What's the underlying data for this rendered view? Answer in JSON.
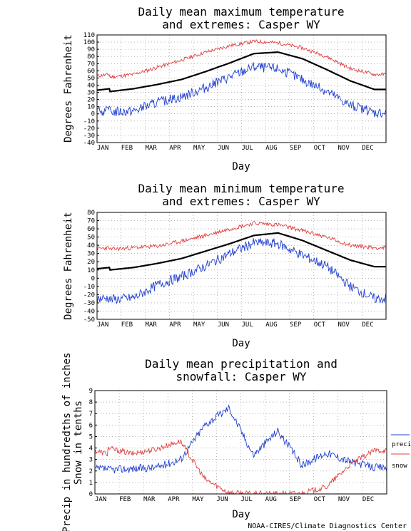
{
  "footer": {
    "credit": "NOAA-CIRES/Climate Diagnostics Center"
  },
  "colors": {
    "extreme_high": "#e04040",
    "extreme_low": "#2040d0",
    "mean": "#000000",
    "precip": "#2040d0",
    "snow": "#e04040",
    "grid": "#888888"
  },
  "chart_data": [
    {
      "type": "line",
      "title": "Daily mean maximum temperature and extremes: Casper WY",
      "title_lines": [
        "Daily mean maximum temperature",
        "and extremes: Casper WY"
      ],
      "xlabel": "Day",
      "ylabel": "Degrees Fahrenheit",
      "xticks": [
        "JAN",
        "FEB",
        "MAR",
        "APR",
        "MAY",
        "JUN",
        "JUL",
        "AUG",
        "SEP",
        "OCT",
        "NOV",
        "DEC"
      ],
      "yticks": [
        -40,
        -30,
        -20,
        -10,
        0,
        10,
        20,
        30,
        40,
        50,
        60,
        70,
        80,
        90,
        100,
        110
      ],
      "ylim": [
        -40,
        110
      ],
      "grid": true,
      "series": [
        {
          "role": "extreme_high",
          "color": "#e04040",
          "months": [
            51,
            55,
            65,
            75,
            86,
            95,
            101,
            99,
            92,
            80,
            63,
            55
          ]
        },
        {
          "role": "mean",
          "color": "#000000",
          "months": [
            31,
            35,
            41,
            48,
            59,
            71,
            84,
            86,
            77,
            62,
            46,
            34
          ]
        },
        {
          "role": "extreme_low",
          "color": "#2040d0",
          "months": [
            3,
            4,
            16,
            24,
            37,
            52,
            66,
            63,
            48,
            32,
            12,
            2
          ]
        }
      ]
    },
    {
      "type": "line",
      "title": "Daily mean minimum temperature and extremes: Casper WY",
      "title_lines": [
        "Daily mean minimum temperature",
        "and extremes: Casper WY"
      ],
      "xlabel": "Day",
      "ylabel": "Degrees Fahrenheit",
      "xticks": [
        "JAN",
        "FEB",
        "MAR",
        "APR",
        "MAY",
        "JUN",
        "JUL",
        "AUG",
        "SEP",
        "OCT",
        "NOV",
        "DEC"
      ],
      "yticks": [
        -50,
        -40,
        -30,
        -20,
        -10,
        0,
        10,
        20,
        30,
        40,
        50,
        60,
        70,
        80
      ],
      "ylim": [
        -50,
        80
      ],
      "grid": true,
      "series": [
        {
          "role": "extreme_high",
          "color": "#e04040",
          "months": [
            35,
            37,
            39,
            45,
            52,
            60,
            67,
            65,
            58,
            50,
            40,
            37
          ]
        },
        {
          "role": "mean",
          "color": "#000000",
          "months": [
            10,
            13,
            18,
            24,
            33,
            42,
            52,
            55,
            46,
            34,
            22,
            14
          ]
        },
        {
          "role": "extreme_low",
          "color": "#2040d0",
          "months": [
            -26,
            -24,
            -8,
            2,
            15,
            30,
            43,
            42,
            28,
            15,
            -10,
            -25
          ]
        }
      ]
    },
    {
      "type": "line",
      "title": "Daily mean precipitation and snowfall: Casper WY",
      "title_lines": [
        "Daily mean precipitation and",
        "snowfall: Casper WY"
      ],
      "xlabel": "Day",
      "ylabel": "Precip in hundredths of inches Snow in tenths",
      "ylabel_lines": [
        "Precip in hundredths of inches",
        "Snow in tenths"
      ],
      "xticks": [
        "JAN",
        "FEB",
        "MAR",
        "APR",
        "MAY",
        "JUN",
        "JUL",
        "AUG",
        "SEP",
        "OCT",
        "NOV",
        "DEC"
      ],
      "yticks": [
        0,
        1,
        2,
        3,
        4,
        5,
        6,
        7,
        8,
        9
      ],
      "ylim": [
        0,
        9
      ],
      "grid": true,
      "legend": [
        "precip",
        "snow"
      ],
      "legend_position": "right",
      "series": [
        {
          "name": "precip",
          "color": "#2040d0",
          "months": [
            2.1,
            2.2,
            2.3,
            3.0,
            6.0,
            7.5,
            3.4,
            5.5,
            2.5,
            3.6,
            2.8,
            2.3
          ]
        },
        {
          "name": "snow",
          "color": "#e04040",
          "months": [
            4.0,
            3.5,
            3.9,
            4.6,
            1.3,
            0.1,
            0.0,
            0.0,
            0.05,
            0.6,
            2.6,
            3.8
          ]
        }
      ]
    }
  ]
}
